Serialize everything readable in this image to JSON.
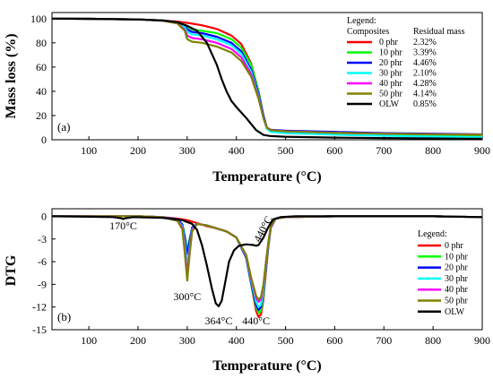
{
  "chart_data": [
    {
      "type": "line",
      "panel_label": "(a)",
      "xlabel": "Temperature (°C)",
      "ylabel": "Mass loss (%)",
      "xlim": [
        25,
        900
      ],
      "ylim": [
        0,
        105
      ],
      "xticks": [
        100,
        200,
        300,
        400,
        500,
        600,
        700,
        800,
        900
      ],
      "yticks": [
        0,
        20,
        40,
        60,
        80,
        100
      ],
      "grid": false,
      "legend": {
        "placement": "top-right",
        "title": "Legend:",
        "col1_header": "Composites",
        "col2_header": "Residual mass",
        "residual_masses": [
          "2.32%",
          "3.39%",
          "4.46%",
          "2.10%",
          "4.28%",
          "4.14%",
          "0.85%"
        ]
      },
      "series": [
        {
          "name": "0 phr",
          "color": "#ff0000",
          "x": [
            25,
            100,
            200,
            250,
            280,
            300,
            330,
            360,
            390,
            410,
            430,
            445,
            455,
            462,
            470,
            500,
            600,
            700,
            800,
            900
          ],
          "y": [
            100,
            99.8,
            99.3,
            98.5,
            97.5,
            96.5,
            94.5,
            91.5,
            86,
            79,
            63,
            40,
            20,
            10,
            7.5,
            6.5,
            5,
            4,
            3,
            2.32
          ]
        },
        {
          "name": "10 phr",
          "color": "#00ff00",
          "x": [
            25,
            100,
            200,
            250,
            280,
            295,
            300,
            310,
            330,
            360,
            390,
            410,
            430,
            445,
            455,
            462,
            470,
            500,
            600,
            700,
            800,
            900
          ],
          "y": [
            100,
            99.8,
            99.3,
            98.4,
            97,
            95,
            93,
            91,
            90,
            88,
            83,
            76,
            62,
            40,
            20,
            10,
            7.8,
            6.8,
            5.5,
            4.5,
            4,
            3.39
          ]
        },
        {
          "name": "20 phr",
          "color": "#0000ff",
          "x": [
            25,
            100,
            200,
            250,
            280,
            295,
            300,
            310,
            330,
            360,
            390,
            410,
            430,
            445,
            455,
            462,
            470,
            500,
            600,
            700,
            800,
            900
          ],
          "y": [
            100,
            99.8,
            99.3,
            98.4,
            96.8,
            94,
            91,
            89,
            88,
            85,
            80,
            73,
            58,
            38,
            20,
            10,
            8.2,
            7.5,
            6.5,
            5.5,
            5,
            4.46
          ]
        },
        {
          "name": "30 phr",
          "color": "#00ffff",
          "x": [
            25,
            100,
            200,
            250,
            280,
            295,
            300,
            310,
            330,
            360,
            390,
            410,
            430,
            445,
            455,
            462,
            470,
            500,
            600,
            700,
            800,
            900
          ],
          "y": [
            100,
            99.8,
            99.3,
            98.3,
            96.5,
            93,
            89,
            87,
            86,
            83,
            78,
            71,
            56,
            36,
            18,
            9,
            6.5,
            5.5,
            4.2,
            3.3,
            2.6,
            2.1
          ]
        },
        {
          "name": "40 phr",
          "color": "#ff00ff",
          "x": [
            25,
            100,
            200,
            250,
            280,
            295,
            300,
            310,
            330,
            360,
            390,
            410,
            430,
            445,
            455,
            462,
            470,
            500,
            600,
            700,
            800,
            900
          ],
          "y": [
            100,
            99.8,
            99.3,
            98.3,
            96.2,
            91,
            86,
            84,
            83,
            80,
            75,
            68,
            54,
            35,
            18,
            10,
            8,
            7,
            5.8,
            5,
            4.6,
            4.28
          ]
        },
        {
          "name": "50 phr",
          "color": "#808000",
          "x": [
            25,
            100,
            200,
            250,
            280,
            295,
            300,
            310,
            330,
            360,
            390,
            410,
            430,
            445,
            455,
            462,
            470,
            500,
            600,
            700,
            800,
            900
          ],
          "y": [
            100,
            99.8,
            99.3,
            98.2,
            96,
            90,
            83,
            81,
            80,
            77,
            72,
            65,
            52,
            34,
            18,
            10,
            8,
            7,
            5.8,
            5,
            4.5,
            4.14
          ]
        },
        {
          "name": "OLW",
          "color": "#000000",
          "x": [
            25,
            100,
            200,
            250,
            280,
            300,
            320,
            340,
            360,
            370,
            380,
            390,
            400,
            420,
            440,
            455,
            470,
            500,
            600,
            700,
            800,
            900
          ],
          "y": [
            100,
            99.8,
            99.3,
            98.5,
            97,
            94,
            90,
            80,
            62,
            50,
            40,
            32,
            27,
            18,
            8,
            4,
            3,
            2.5,
            1.8,
            1.4,
            1.1,
            0.85
          ]
        }
      ]
    },
    {
      "type": "line",
      "panel_label": "(b)",
      "xlabel": "Temperature (°C)",
      "ylabel": "DTG",
      "xlim": [
        25,
        900
      ],
      "ylim": [
        -15,
        1
      ],
      "xticks": [
        100,
        200,
        300,
        400,
        500,
        600,
        700,
        800,
        900
      ],
      "yticks": [
        0,
        -3,
        -6,
        -9,
        -12,
        -15
      ],
      "grid": false,
      "annotations": [
        {
          "text": "170°C",
          "x": 170,
          "y": -1.7
        },
        {
          "text": "300°C",
          "x": 300,
          "y": -11.1
        },
        {
          "text": "364°C",
          "x": 364,
          "y": -14.3
        },
        {
          "text": "440°C",
          "x": 440,
          "y": -14.3
        },
        {
          "text": "440°C",
          "x": 440,
          "y": -3.5,
          "rotated": true
        }
      ],
      "legend": {
        "placement": "right",
        "title": "Legend:"
      },
      "series": [
        {
          "name": "0 phr",
          "color": "#ff0000",
          "x": [
            25,
            150,
            200,
            250,
            280,
            300,
            320,
            340,
            360,
            380,
            400,
            420,
            430,
            440,
            445,
            450,
            455,
            460,
            465,
            470,
            480,
            500,
            600,
            700,
            800,
            900
          ],
          "y": [
            0,
            0,
            0,
            -0.1,
            -0.3,
            -0.5,
            -0.9,
            -1.3,
            -1.6,
            -2,
            -2.8,
            -5.5,
            -9,
            -12.5,
            -13.3,
            -13,
            -11,
            -7.5,
            -4,
            -1.5,
            -0.3,
            -0.1,
            0,
            0,
            0,
            -0.1
          ]
        },
        {
          "name": "10 phr",
          "color": "#00ff00",
          "x": [
            25,
            150,
            200,
            250,
            280,
            290,
            295,
            300,
            305,
            310,
            320,
            340,
            360,
            380,
            400,
            420,
            430,
            440,
            445,
            450,
            455,
            460,
            465,
            470,
            480,
            500,
            600,
            700,
            800,
            900
          ],
          "y": [
            0,
            0,
            0,
            -0.1,
            -0.4,
            -1,
            -2.5,
            -4.5,
            -3,
            -1.5,
            -1,
            -1.2,
            -1.6,
            -2,
            -2.8,
            -5.5,
            -9,
            -12,
            -12.8,
            -12.5,
            -10.5,
            -7,
            -4,
            -1.5,
            -0.3,
            -0.1,
            0,
            0,
            0,
            -0.1
          ]
        },
        {
          "name": "20 phr",
          "color": "#0000ff",
          "x": [
            25,
            150,
            200,
            250,
            280,
            290,
            295,
            300,
            305,
            310,
            320,
            340,
            360,
            380,
            400,
            420,
            430,
            440,
            445,
            450,
            455,
            460,
            465,
            470,
            480,
            500,
            600,
            700,
            800,
            900
          ],
          "y": [
            0,
            0,
            0,
            -0.1,
            -0.4,
            -1.1,
            -2.8,
            -5,
            -3.2,
            -1.5,
            -1,
            -1.2,
            -1.6,
            -2,
            -2.8,
            -5.5,
            -8.8,
            -11.7,
            -12.4,
            -12,
            -10,
            -6.8,
            -3.8,
            -1.5,
            -0.3,
            -0.1,
            0,
            0,
            0,
            -0.1
          ]
        },
        {
          "name": "30 phr",
          "color": "#00ffff",
          "x": [
            25,
            150,
            200,
            250,
            280,
            290,
            295,
            300,
            305,
            310,
            320,
            340,
            360,
            380,
            400,
            420,
            430,
            440,
            445,
            450,
            455,
            460,
            465,
            470,
            480,
            500,
            600,
            700,
            800,
            900
          ],
          "y": [
            0,
            0,
            0,
            -0.1,
            -0.5,
            -1.3,
            -3.5,
            -6.5,
            -4,
            -1.7,
            -1,
            -1.2,
            -1.6,
            -2,
            -2.8,
            -5.3,
            -8.5,
            -11.3,
            -12,
            -11.7,
            -9.8,
            -6.5,
            -3.6,
            -1.4,
            -0.3,
            -0.1,
            0,
            0,
            0,
            -0.1
          ]
        },
        {
          "name": "40 phr",
          "color": "#ff00ff",
          "x": [
            25,
            150,
            200,
            250,
            280,
            290,
            295,
            300,
            305,
            310,
            320,
            340,
            360,
            380,
            400,
            420,
            430,
            440,
            445,
            450,
            455,
            460,
            465,
            470,
            480,
            500,
            600,
            700,
            800,
            900
          ],
          "y": [
            0,
            0,
            0,
            -0.1,
            -0.5,
            -1.5,
            -4.2,
            -7.8,
            -4.5,
            -1.8,
            -1,
            -1.2,
            -1.6,
            -2,
            -2.8,
            -5.2,
            -8.3,
            -10.8,
            -11.3,
            -11,
            -9.3,
            -6.3,
            -3.5,
            -1.4,
            -0.3,
            -0.1,
            0,
            0,
            0,
            -0.1
          ]
        },
        {
          "name": "50 phr",
          "color": "#808000",
          "x": [
            25,
            150,
            200,
            250,
            280,
            290,
            295,
            300,
            305,
            310,
            320,
            340,
            360,
            380,
            400,
            420,
            430,
            440,
            445,
            450,
            455,
            460,
            465,
            470,
            480,
            500,
            600,
            700,
            800,
            900
          ],
          "y": [
            0,
            0,
            0,
            -0.1,
            -0.6,
            -1.7,
            -4.8,
            -8.5,
            -5,
            -2,
            -1,
            -1.2,
            -1.6,
            -2,
            -2.8,
            -5.1,
            -8.1,
            -10.5,
            -11,
            -10.7,
            -9,
            -6.1,
            -3.4,
            -1.3,
            -0.3,
            -0.1,
            0,
            0,
            0,
            -0.1
          ]
        },
        {
          "name": "OLW",
          "color": "#000000",
          "x": [
            25,
            100,
            150,
            165,
            170,
            175,
            190,
            250,
            290,
            310,
            320,
            330,
            340,
            350,
            358,
            364,
            370,
            378,
            385,
            395,
            405,
            420,
            435,
            440,
            445,
            455,
            465,
            475,
            490,
            520,
            600,
            700,
            800,
            900
          ],
          "y": [
            0,
            -0.05,
            -0.1,
            -0.25,
            -0.35,
            -0.25,
            -0.1,
            -0.2,
            -0.5,
            -1,
            -1.8,
            -3.8,
            -6.5,
            -9.5,
            -11.5,
            -11.9,
            -11.2,
            -8.5,
            -6,
            -4.5,
            -3.9,
            -3.7,
            -3.8,
            -3.9,
            -3.8,
            -2.8,
            -1.4,
            -0.4,
            -0.1,
            0,
            0,
            0,
            0,
            -0.1
          ]
        }
      ]
    }
  ]
}
